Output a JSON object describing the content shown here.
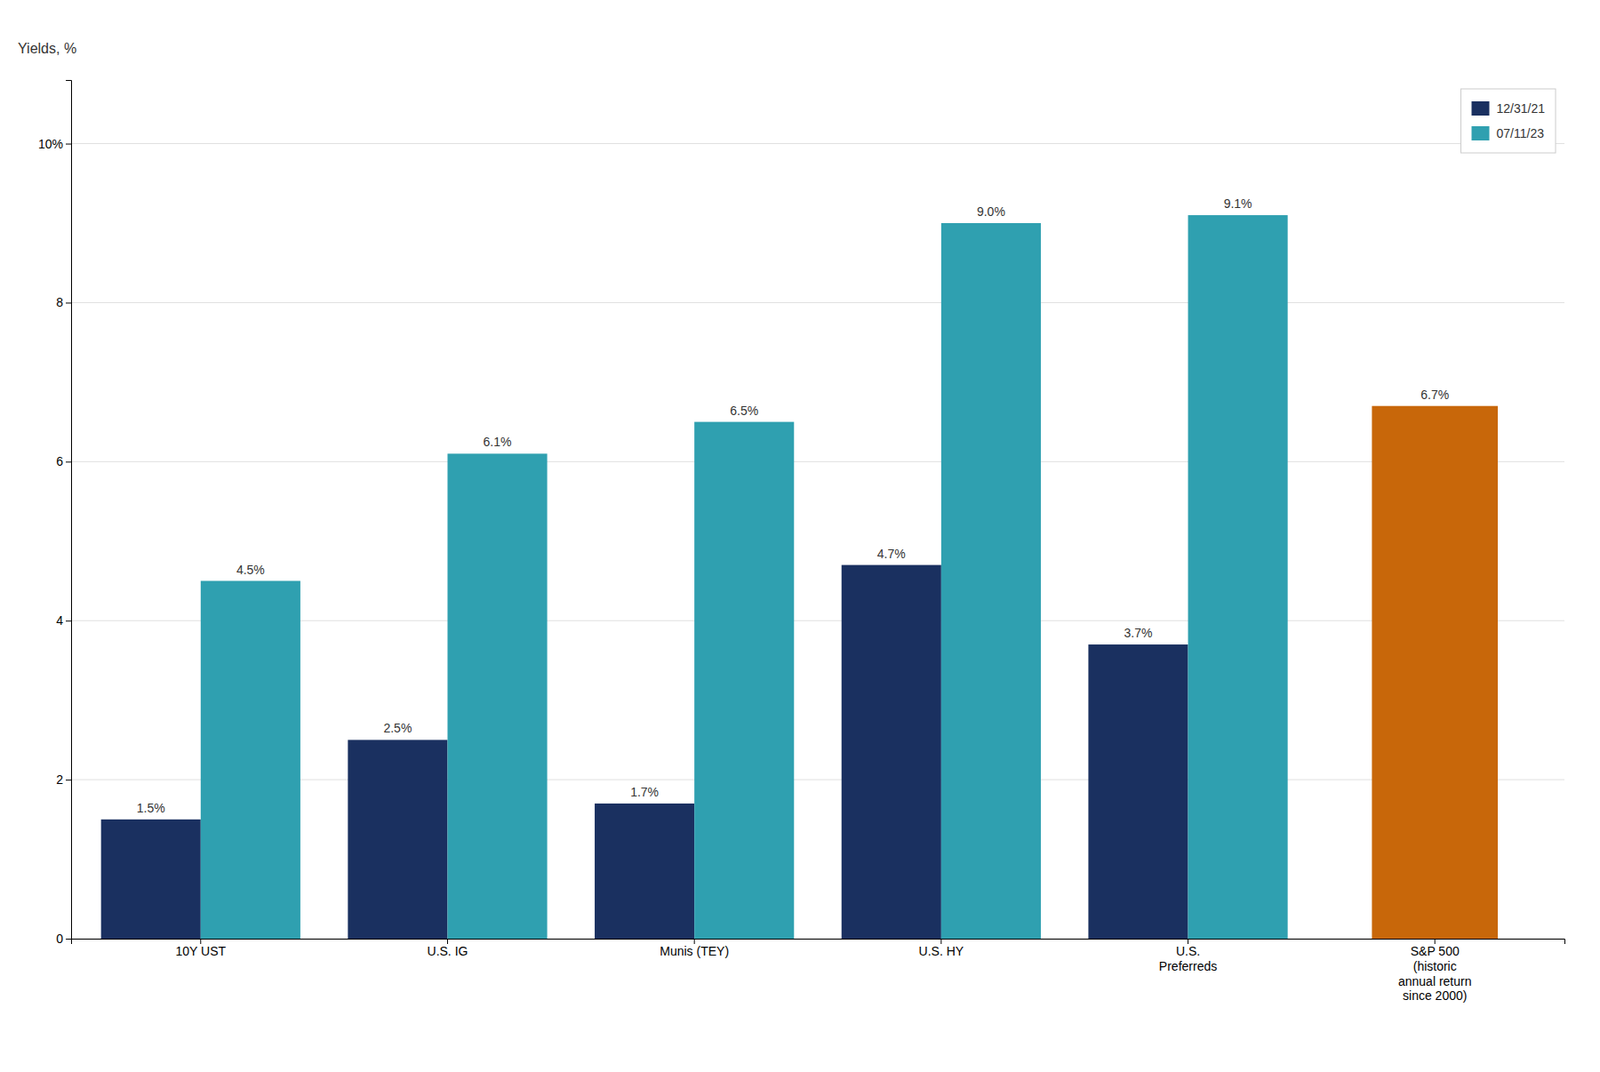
{
  "chart_data": {
    "type": "bar",
    "ylabel": "Yields, %",
    "categories": [
      "10Y UST",
      "U.S. IG",
      "Munis (TEY)",
      "U.S. HY",
      "U.S.\nPreferreds",
      "S&P 500\n(historic\nannual return\nsince 2000)"
    ],
    "series": [
      {
        "name": "12/31/21",
        "color": "#1a3060",
        "values": [
          1.5,
          2.5,
          1.7,
          4.7,
          3.7,
          null
        ],
        "value_labels": [
          "1.5%",
          "2.5%",
          "1.7%",
          "4.7%",
          "3.7%",
          null
        ]
      },
      {
        "name": "07/11/23",
        "color": "#2fa0b0",
        "values": [
          4.5,
          6.1,
          6.5,
          9.0,
          9.1,
          null
        ],
        "value_labels": [
          "4.5%",
          "6.1%",
          "6.5%",
          "9.0%",
          "9.1%",
          null
        ]
      },
      {
        "color": "#c8670a",
        "values": [
          null,
          null,
          null,
          null,
          null,
          6.7
        ],
        "value_labels": [
          null,
          null,
          null,
          null,
          null,
          "6.7%"
        ]
      }
    ],
    "ylim": [
      0,
      10.8
    ],
    "yticks": [
      0,
      2,
      4,
      6,
      8,
      {
        "value": 10,
        "label": "10%"
      }
    ],
    "grid": true,
    "legend": "top-right",
    "data_labels": true
  }
}
